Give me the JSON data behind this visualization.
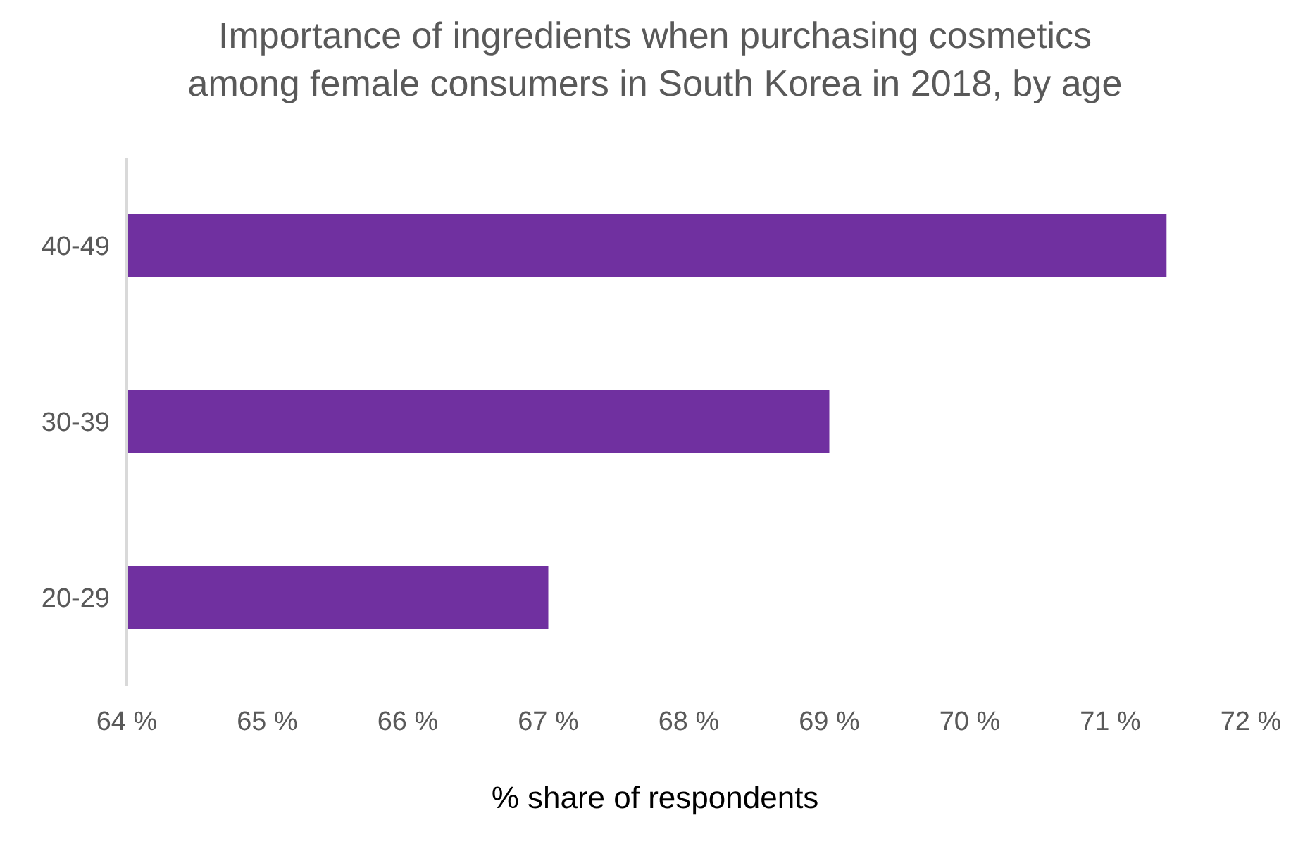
{
  "chart_data": {
    "type": "bar",
    "orientation": "horizontal",
    "title": "Importance of ingredients when purchasing cosmetics among female consumers in South Korea in 2018, by age",
    "xlabel": "% share of respondents",
    "categories": [
      "40-49",
      "30-39",
      "20-29"
    ],
    "values": [
      71.4,
      69,
      67
    ],
    "color": "#7030a0",
    "xlim": [
      64,
      72
    ],
    "xticks": [
      {
        "value": 64,
        "label": "64 %"
      },
      {
        "value": 65,
        "label": "65 %"
      },
      {
        "value": 66,
        "label": "66 %"
      },
      {
        "value": 67,
        "label": "67 %"
      },
      {
        "value": 68,
        "label": "68 %"
      },
      {
        "value": 69,
        "label": "69 %"
      },
      {
        "value": 70,
        "label": "70 %"
      },
      {
        "value": 71,
        "label": "71 %"
      },
      {
        "value": 72,
        "label": "72 %"
      }
    ],
    "grid": false,
    "legend": false
  }
}
